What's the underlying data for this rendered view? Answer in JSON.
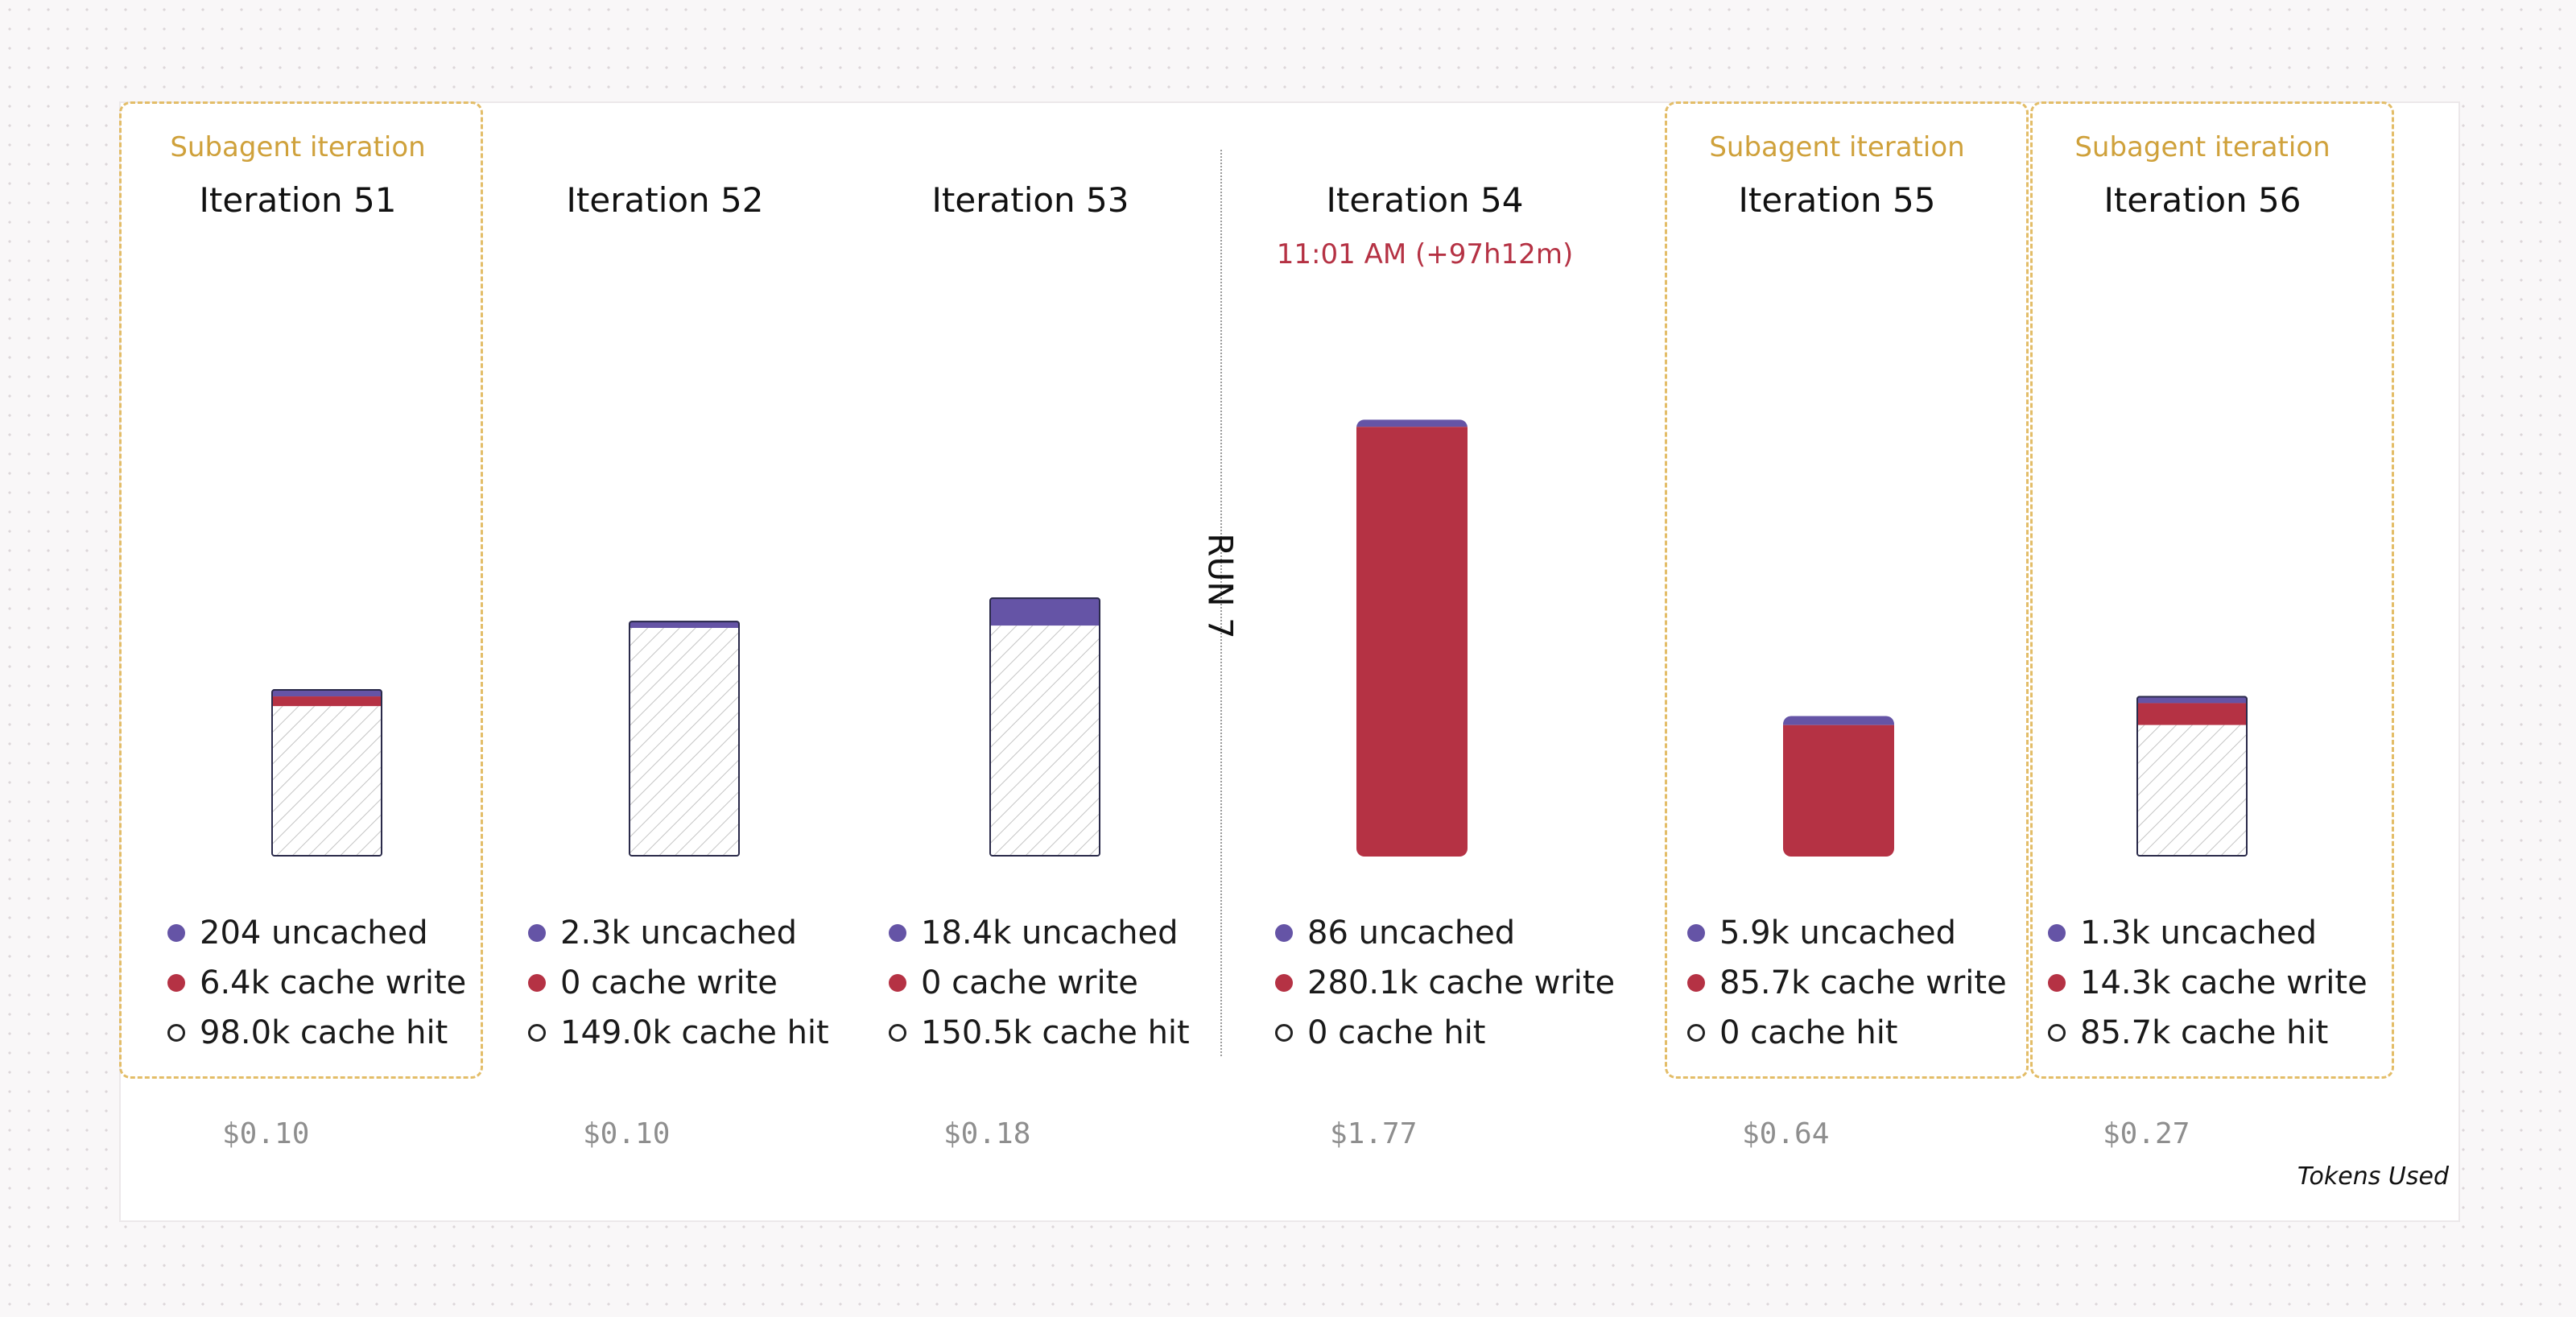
{
  "chart_data": {
    "type": "bar",
    "stacked": true,
    "x_title": "Tokens Used",
    "run_label": "RUN 7",
    "subagent_label": "Subagent iteration",
    "colors": {
      "uncached": "#6554a6",
      "cache_write": "#b53244",
      "cache_hit": "hatched-white",
      "subagent_border": "#e3bd68",
      "time": "#b53244"
    },
    "iterations": [
      {
        "title": "Iteration 51",
        "subagent": true,
        "time": "",
        "uncached": 204,
        "cache_write": 6400,
        "cache_hit": 98000,
        "uncached_label": "204 uncached",
        "write_label": "6.4k cache write",
        "hit_label": "98.0k cache hit",
        "cost": "$0.10"
      },
      {
        "title": "Iteration 52",
        "subagent": false,
        "time": "",
        "uncached": 2300,
        "cache_write": 0,
        "cache_hit": 149000,
        "uncached_label": "2.3k uncached",
        "write_label": "0 cache write",
        "hit_label": "149.0k cache hit",
        "cost": "$0.10"
      },
      {
        "title": "Iteration 53",
        "subagent": false,
        "time": "",
        "uncached": 18400,
        "cache_write": 0,
        "cache_hit": 150500,
        "uncached_label": "18.4k uncached",
        "write_label": "0 cache write",
        "hit_label": "150.5k cache hit",
        "cost": "$0.18"
      },
      {
        "title": "Iteration 54",
        "subagent": false,
        "time": "11:01 AM (+97h12m)",
        "uncached": 86,
        "cache_write": 280100,
        "cache_hit": 0,
        "uncached_label": "86 uncached",
        "write_label": "280.1k cache write",
        "hit_label": "0 cache hit",
        "cost": "$1.77"
      },
      {
        "title": "Iteration 55",
        "subagent": true,
        "time": "",
        "uncached": 5900,
        "cache_write": 85700,
        "cache_hit": 0,
        "uncached_label": "5.9k uncached",
        "write_label": "85.7k cache write",
        "hit_label": "0 cache hit",
        "cost": "$0.64"
      },
      {
        "title": "Iteration 56",
        "subagent": true,
        "time": "",
        "uncached": 1300,
        "cache_write": 14300,
        "cache_hit": 85700,
        "uncached_label": "1.3k uncached",
        "write_label": "14.3k cache write",
        "hit_label": "85.7k cache hit",
        "cost": "$0.27"
      }
    ]
  }
}
